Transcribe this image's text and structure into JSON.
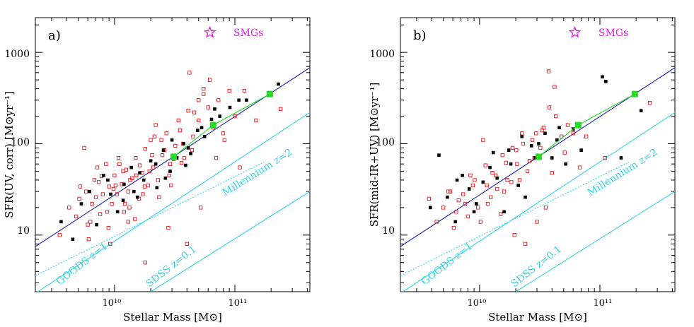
{
  "colors": {
    "sfg": "#e8141c",
    "irac": "#000000",
    "mean": "#22dd22",
    "fit": "#1a1ab0",
    "reference": "#33d6e6",
    "smg": "#e020e0"
  },
  "shared": {
    "xlabel": "Stellar Mass [M⊙]",
    "xtick_labels": [
      "10¹⁰",
      "10¹¹"
    ],
    "ytick_labels": [
      "10",
      "100",
      "1000"
    ],
    "smg_label": "SMGs",
    "goods_label": "GOODS z=1",
    "sdss_label": "SDSS z=0.1",
    "millennium_label": "Millennium z=2"
  },
  "chart_data": [
    {
      "type": "scatter",
      "panel_label": "a)",
      "ylabel": "SFR(UV, corr) [M⊙yr⁻¹]",
      "x_scale": "log",
      "y_scale": "log",
      "xlim": [
        2200000000.0,
        420000000000.0
      ],
      "ylim": [
        2.4,
        2400
      ],
      "legend": "SMGs (star marker), top-center",
      "series": [
        {
          "marker": "open-square",
          "x": [
            3500000000.0,
            4200000000.0,
            4800000000.0,
            5200000000.0,
            5600000000.0,
            6000000000.0,
            6500000000.0,
            6800000000.0,
            7200000000.0,
            7600000000.0,
            8000000000.0,
            8500000000.0,
            9000000000.0,
            9500000000.0,
            10000000000.0,
            10500000000.0,
            11000000000.0,
            11500000000.0,
            12000000000.0,
            12500000000.0,
            13000000000.0,
            14000000000.0,
            15000000000.0,
            16000000000.0,
            17000000000.0,
            18000000000.0,
            19000000000.0,
            20000000000.0,
            21000000000.0,
            22000000000.0,
            23000000000.0,
            25000000000.0,
            27000000000.0,
            29000000000.0,
            32000000000.0,
            35000000000.0,
            38000000000.0,
            42000000000.0,
            46000000000.0,
            50000000000.0,
            55000000000.0,
            60000000000.0,
            66000000000.0,
            73000000000.0,
            80000000000.0,
            90000000000.0,
            100000000000.0,
            120000000000.0,
            150000000000.0,
            240000000000.0,
            5800000000.0,
            6300000000.0,
            7000000000.0,
            7800000000.0,
            8700000000.0,
            9800000000.0,
            10800000000.0,
            12200000000.0,
            13500000000.0,
            14800000000.0,
            16200000000.0,
            17800000000.0,
            19500000000.0,
            21500000000.0,
            23500000000.0,
            26000000000.0,
            28500000000.0,
            31000000000.0,
            34000000000.0,
            37000000000.0,
            41000000000.0,
            45000000000.0,
            50000000000.0,
            55000000000.0,
            62000000000.0,
            70000000000.0,
            82000000000.0,
            110000000000.0,
            5100000000.0,
            6100000000.0,
            7400000000.0,
            8900000000.0,
            10200000000.0,
            11800000000.0,
            13300000000.0,
            15200000000.0,
            17200000000.0,
            20500000000.0,
            24500000000.0,
            29500000000.0,
            36000000000.0,
            44000000000.0,
            18000000000.0,
            28000000000.0,
            40000000000.0,
            52000000000.0,
            9200000000.0,
            13000000000.0
          ],
          "y": [
            10,
            20,
            16,
            34,
            90,
            13,
            22,
            40,
            55,
            17,
            28,
            60,
            34,
            22,
            45,
            28,
            60,
            36,
            18,
            52,
            30,
            42,
            70,
            25,
            48,
            88,
            35,
            110,
            55,
            160,
            40,
            75,
            130,
            60,
            95,
            140,
            70,
            600,
            220,
            180,
            350,
            250,
            150,
            300,
            130,
            380,
            200,
            380,
            180,
            240,
            30,
            14,
            26,
            44,
            18,
            32,
            70,
            22,
            40,
            15,
            58,
            34,
            50,
            120,
            26,
            85,
            45,
            68,
            180,
            100,
            230,
            120,
            300,
            400,
            500,
            70,
            110,
            55,
            25,
            9,
            38,
            12,
            35,
            50,
            20,
            45,
            28,
            75,
            110,
            35,
            62,
            85,
            5,
            12,
            8,
            20,
            8,
            14
          ],
          "name": ""
        },
        {
          "marker": "filled-square",
          "x": [
            3600000000.0,
            4500000000.0,
            5300000000.0,
            6200000000.0,
            7100000000.0,
            8100000000.0,
            9300000000.0,
            10600000000.0,
            12000000000.0,
            13800000000.0,
            15500000000.0,
            17500000000.0,
            20000000000.0,
            22500000000.0,
            25500000000.0,
            29000000000.0,
            33000000000.0,
            37500000000.0,
            43000000000.0,
            49000000000.0,
            56000000000.0,
            64000000000.0,
            75000000000.0,
            91000000000.0,
            108000000000.0,
            125000000000.0,
            230000000000.0,
            11800000000.0,
            16200000000.0,
            22000000000.0,
            30000000000.0,
            41000000000.0,
            53000000000.0,
            8800000000.0,
            14500000000.0,
            26500000000.0,
            39000000000.0,
            68000000000.0
          ],
          "y": [
            14,
            9,
            22,
            30,
            13,
            45,
            28,
            18,
            36,
            55,
            26,
            40,
            65,
            33,
            85,
            50,
            70,
            100,
            78,
            140,
            120,
            185,
            200,
            250,
            300,
            300,
            450,
            24,
            48,
            60,
            110,
            90,
            150,
            40,
            30,
            42,
            58,
            240
          ],
          "name": ""
        },
        {
          "marker": "green-square-line",
          "x": [
            31000000000.0,
            66000000000.0,
            195000000000.0
          ],
          "y": [
            72,
            160,
            350
          ],
          "name": ""
        },
        {
          "marker": "star",
          "x": [
            62000000000.0
          ],
          "y": [
            1650
          ],
          "name": "SMGs"
        }
      ],
      "lines": [
        {
          "label": "fit",
          "x": [
            2200000000.0,
            420000000000.0
          ],
          "y": [
            7.5,
            680
          ]
        },
        {
          "label": "GOODS z=1",
          "x": [
            2200000000.0,
            420000000000.0
          ],
          "y": [
            2.3,
            220
          ]
        },
        {
          "label": "SDSS z=0.1",
          "x": [
            20000000000.0,
            420000000000.0
          ],
          "y": [
            2.4,
            30
          ]
        },
        {
          "label": "Millennium z=2",
          "x": [
            2200000000.0,
            175000000000.0
          ],
          "y": [
            3.6,
            63
          ],
          "style": "dotted"
        }
      ]
    },
    {
      "type": "scatter",
      "panel_label": "b)",
      "ylabel": "SFR(mid-IR+UV) [M⊙yr⁻¹]",
      "x_scale": "log",
      "y_scale": "log",
      "xlim": [
        2200000000.0,
        420000000000.0
      ],
      "ylim": [
        2.4,
        2400
      ],
      "legend": "SMGs (star marker), top-center",
      "series": [
        {
          "marker": "open-square",
          "x": [
            3800000000.0,
            4400000000.0,
            5000000000.0,
            5500000000.0,
            6100000000.0,
            6700000000.0,
            7300000000.0,
            8000000000.0,
            8800000000.0,
            9700000000.0,
            10700000000.0,
            11700000000.0,
            12800000000.0,
            14000000000.0,
            15500000000.0,
            17000000000.0,
            18800000000.0,
            20500000000.0,
            22500000000.0,
            25000000000.0,
            27500000000.0,
            30500000000.0,
            34000000000.0,
            38000000000.0,
            43000000000.0,
            48000000000.0,
            54000000000.0,
            60000000000.0,
            68000000000.0,
            77000000000.0,
            110000000000.0,
            260000000000.0,
            5700000000.0,
            6400000000.0,
            7600000000.0,
            9100000000.0,
            10200000000.0,
            11200000000.0,
            12400000000.0,
            13600000000.0,
            15000000000.0,
            16600000000.0,
            18400000000.0,
            20200000000.0,
            23000000000.0,
            26000000000.0,
            29500000000.0,
            33000000000.0,
            37500000000.0,
            42000000000.0,
            19500000000.0,
            24000000000.0,
            30000000000.0,
            35500000000.0,
            8400000000.0,
            11500000000.0,
            16000000000.0,
            21500000000.0,
            28500000000.0,
            32000000000.0,
            40000000000.0,
            51000000000.0
          ],
          "y": [
            25,
            14,
            20,
            30,
            12,
            24,
            28,
            16,
            35,
            20,
            110,
            22,
            48,
            32,
            75,
            40,
            90,
            60,
            130,
            50,
            110,
            70,
            150,
            250,
            200,
            120,
            160,
            130,
            55,
            120,
            70,
            280,
            30,
            18,
            22,
            40,
            14,
            58,
            26,
            45,
            17,
            62,
            38,
            85,
            100,
            65,
            130,
            140,
            620,
            420,
            10,
            8,
            14,
            20,
            45,
            35,
            30,
            40,
            70,
            90,
            48,
            80
          ],
          "name": ""
        },
        {
          "marker": "filled-square",
          "x": [
            3900000000.0,
            4600000000.0,
            5400000000.0,
            6300000000.0,
            7200000000.0,
            8200000000.0,
            9400000000.0,
            10700000000.0,
            12200000000.0,
            14000000000.0,
            16000000000.0,
            18200000000.0,
            21000000000.0,
            24000000000.0,
            27000000000.0,
            31000000000.0,
            35000000000.0,
            40000000000.0,
            46000000000.0,
            52000000000.0,
            60000000000.0,
            70000000000.0,
            105000000000.0,
            112000000000.0,
            150000000000.0,
            220000000000.0,
            6500000000.0,
            9000000000.0,
            13000000000.0,
            17500000000.0,
            22500000000.0,
            29000000000.0,
            44000000000.0
          ],
          "y": [
            20,
            75,
            26,
            14,
            45,
            32,
            22,
            38,
            55,
            42,
            18,
            60,
            35,
            26,
            95,
            100,
            130,
            70,
            150,
            60,
            145,
            85,
            540,
            480,
            70,
            230,
            40,
            18,
            80,
            85,
            120,
            70,
            110
          ],
          "name": ""
        },
        {
          "marker": "green-square-line",
          "x": [
            31000000000.0,
            66000000000.0,
            195000000000.0
          ],
          "y": [
            72,
            160,
            350
          ],
          "name": ""
        },
        {
          "marker": "star",
          "x": [
            62000000000.0
          ],
          "y": [
            1650
          ],
          "name": "SMGs"
        }
      ],
      "lines": [
        {
          "label": "fit",
          "x": [
            2200000000.0,
            420000000000.0
          ],
          "y": [
            7.5,
            680
          ]
        },
        {
          "label": "GOODS z=1",
          "x": [
            2200000000.0,
            420000000000.0
          ],
          "y": [
            2.3,
            220
          ]
        },
        {
          "label": "SDSS z=0.1",
          "x": [
            20000000000.0,
            420000000000.0
          ],
          "y": [
            2.4,
            30
          ]
        },
        {
          "label": "Millennium z=2",
          "x": [
            2200000000.0,
            175000000000.0
          ],
          "y": [
            3.6,
            63
          ],
          "style": "dotted"
        }
      ]
    }
  ]
}
